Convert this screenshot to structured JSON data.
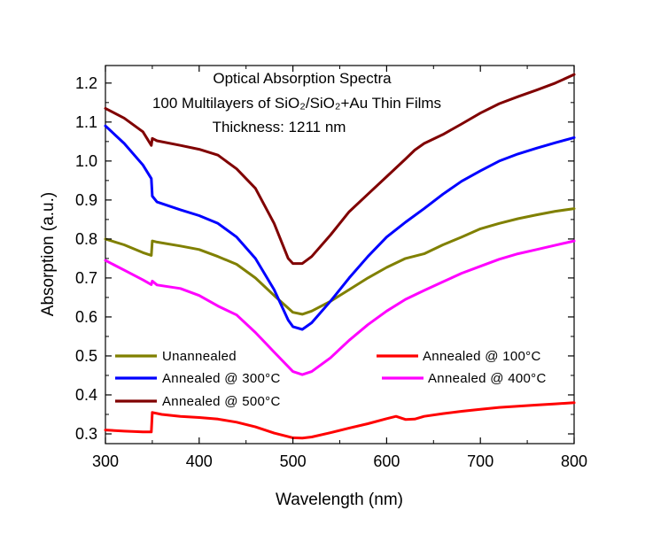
{
  "chart_data": {
    "type": "line",
    "title_lines": [
      "Optical Absorption Spectra",
      "100 Multilayers of SiO₂/SiO₂+Au Thin Films",
      "Thickness: 1211 nm"
    ],
    "xlabel": "Wavelength (nm)",
    "ylabel": "Absorption (a.u.)",
    "xlim": [
      300,
      800
    ],
    "ylim": [
      0.275,
      1.245
    ],
    "xticks": [
      300,
      400,
      500,
      600,
      700,
      800
    ],
    "yticks": [
      0.3,
      0.4,
      0.5,
      0.6,
      0.7,
      0.8,
      0.9,
      1.0,
      1.1,
      1.2
    ],
    "grid": false,
    "legend_placement": "bottom",
    "series": [
      {
        "name": "Unannealed",
        "color": "#808000",
        "points": [
          [
            300,
            0.8
          ],
          [
            320,
            0.785
          ],
          [
            340,
            0.765
          ],
          [
            349,
            0.758
          ],
          [
            350,
            0.795
          ],
          [
            355,
            0.792
          ],
          [
            380,
            0.782
          ],
          [
            400,
            0.773
          ],
          [
            420,
            0.755
          ],
          [
            440,
            0.735
          ],
          [
            460,
            0.7
          ],
          [
            480,
            0.655
          ],
          [
            500,
            0.612
          ],
          [
            510,
            0.607
          ],
          [
            520,
            0.615
          ],
          [
            540,
            0.64
          ],
          [
            560,
            0.67
          ],
          [
            580,
            0.7
          ],
          [
            600,
            0.727
          ],
          [
            620,
            0.75
          ],
          [
            640,
            0.762
          ],
          [
            660,
            0.785
          ],
          [
            680,
            0.805
          ],
          [
            700,
            0.826
          ],
          [
            720,
            0.84
          ],
          [
            740,
            0.852
          ],
          [
            760,
            0.862
          ],
          [
            780,
            0.871
          ],
          [
            800,
            0.878
          ]
        ]
      },
      {
        "name": "Annealed @ 100°C",
        "color": "#ff0000",
        "points": [
          [
            300,
            0.31
          ],
          [
            320,
            0.307
          ],
          [
            340,
            0.305
          ],
          [
            349,
            0.305
          ],
          [
            350,
            0.355
          ],
          [
            360,
            0.35
          ],
          [
            380,
            0.345
          ],
          [
            400,
            0.342
          ],
          [
            420,
            0.338
          ],
          [
            440,
            0.33
          ],
          [
            460,
            0.318
          ],
          [
            480,
            0.302
          ],
          [
            500,
            0.29
          ],
          [
            510,
            0.289
          ],
          [
            520,
            0.292
          ],
          [
            540,
            0.303
          ],
          [
            560,
            0.315
          ],
          [
            580,
            0.326
          ],
          [
            600,
            0.339
          ],
          [
            610,
            0.345
          ],
          [
            620,
            0.337
          ],
          [
            630,
            0.338
          ],
          [
            640,
            0.345
          ],
          [
            660,
            0.352
          ],
          [
            680,
            0.358
          ],
          [
            700,
            0.363
          ],
          [
            720,
            0.368
          ],
          [
            740,
            0.371
          ],
          [
            760,
            0.374
          ],
          [
            780,
            0.377
          ],
          [
            800,
            0.38
          ]
        ]
      },
      {
        "name": "Annealed @ 300°C",
        "color": "#0000ff",
        "points": [
          [
            300,
            1.09
          ],
          [
            320,
            1.045
          ],
          [
            340,
            0.99
          ],
          [
            349,
            0.955
          ],
          [
            350,
            0.91
          ],
          [
            355,
            0.895
          ],
          [
            380,
            0.875
          ],
          [
            400,
            0.86
          ],
          [
            420,
            0.84
          ],
          [
            440,
            0.805
          ],
          [
            460,
            0.75
          ],
          [
            480,
            0.67
          ],
          [
            495,
            0.592
          ],
          [
            500,
            0.575
          ],
          [
            510,
            0.568
          ],
          [
            520,
            0.585
          ],
          [
            540,
            0.64
          ],
          [
            560,
            0.7
          ],
          [
            580,
            0.755
          ],
          [
            600,
            0.805
          ],
          [
            620,
            0.843
          ],
          [
            640,
            0.878
          ],
          [
            660,
            0.915
          ],
          [
            680,
            0.948
          ],
          [
            700,
            0.975
          ],
          [
            720,
            1.0
          ],
          [
            740,
            1.018
          ],
          [
            760,
            1.033
          ],
          [
            780,
            1.047
          ],
          [
            800,
            1.06
          ]
        ]
      },
      {
        "name": "Annealed @ 400°C",
        "color": "#ff00ff",
        "points": [
          [
            300,
            0.745
          ],
          [
            320,
            0.72
          ],
          [
            340,
            0.695
          ],
          [
            349,
            0.683
          ],
          [
            350,
            0.692
          ],
          [
            355,
            0.682
          ],
          [
            380,
            0.673
          ],
          [
            400,
            0.655
          ],
          [
            420,
            0.628
          ],
          [
            440,
            0.605
          ],
          [
            460,
            0.56
          ],
          [
            480,
            0.51
          ],
          [
            500,
            0.46
          ],
          [
            510,
            0.452
          ],
          [
            520,
            0.46
          ],
          [
            540,
            0.495
          ],
          [
            560,
            0.54
          ],
          [
            580,
            0.58
          ],
          [
            600,
            0.615
          ],
          [
            620,
            0.645
          ],
          [
            640,
            0.668
          ],
          [
            660,
            0.69
          ],
          [
            680,
            0.712
          ],
          [
            700,
            0.73
          ],
          [
            720,
            0.748
          ],
          [
            740,
            0.762
          ],
          [
            760,
            0.773
          ],
          [
            780,
            0.784
          ],
          [
            800,
            0.795
          ]
        ]
      },
      {
        "name": "Annealed @ 500°C",
        "color": "#800000",
        "points": [
          [
            300,
            1.135
          ],
          [
            320,
            1.11
          ],
          [
            340,
            1.075
          ],
          [
            349,
            1.04
          ],
          [
            350,
            1.058
          ],
          [
            355,
            1.052
          ],
          [
            380,
            1.04
          ],
          [
            400,
            1.03
          ],
          [
            420,
            1.015
          ],
          [
            440,
            0.98
          ],
          [
            460,
            0.93
          ],
          [
            480,
            0.84
          ],
          [
            495,
            0.75
          ],
          [
            500,
            0.737
          ],
          [
            510,
            0.737
          ],
          [
            520,
            0.755
          ],
          [
            540,
            0.81
          ],
          [
            560,
            0.87
          ],
          [
            580,
            0.915
          ],
          [
            600,
            0.96
          ],
          [
            620,
            1.005
          ],
          [
            630,
            1.028
          ],
          [
            640,
            1.045
          ],
          [
            660,
            1.068
          ],
          [
            680,
            1.095
          ],
          [
            700,
            1.123
          ],
          [
            720,
            1.147
          ],
          [
            740,
            1.165
          ],
          [
            760,
            1.182
          ],
          [
            780,
            1.2
          ],
          [
            800,
            1.222
          ]
        ]
      }
    ]
  }
}
